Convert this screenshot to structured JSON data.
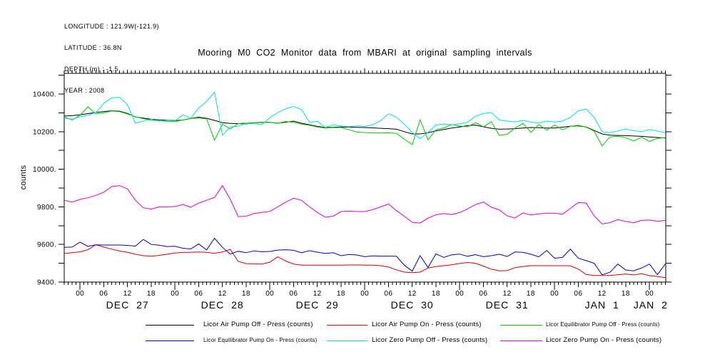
{
  "info_lines": [
    "LONGITUDE : 121.9W(-121.9)",
    "LATITUDE : 36.8N",
    "DEPTH (m) : -1.5",
    "YEAR : 2008"
  ],
  "title": "Mooring M0 CO2 Monitor data from MBARI at original sampling intervals",
  "y_axis": {
    "label": "counts",
    "major": [
      {
        "value": 9400,
        "label": "9400."
      },
      {
        "value": 9600,
        "label": "9600."
      },
      {
        "value": 9800,
        "label": "9800."
      },
      {
        "value": 10000,
        "label": "10000."
      },
      {
        "value": 10200,
        "label": "10200."
      },
      {
        "value": 10400,
        "label": "10400."
      }
    ],
    "minor_step": 100
  },
  "x_axis": {
    "hour_labels": [
      "00",
      "06",
      "12",
      "18"
    ],
    "day_labels": [
      {
        "text": "DEC 27",
        "t": 12
      },
      {
        "text": "DEC 28",
        "t": 36
      },
      {
        "text": "DEC 29",
        "t": 60
      },
      {
        "text": "DEC 30",
        "t": 84
      },
      {
        "text": "DEC 31",
        "t": 108
      },
      {
        "text": "JAN 1",
        "t": 132
      },
      {
        "text": "JAN 2",
        "t": 144.3
      }
    ]
  },
  "legend": {
    "rows": [
      [
        {
          "label": "Licor Air Pump Off - Press (counts)",
          "color": "#000000",
          "small": false
        },
        {
          "label": "Licor Air Pump On - Press (counts)",
          "color": "#dd0000",
          "small": false
        },
        {
          "label": "Licor Equilibrator Pump Off - Press (counts)",
          "color": "#00cc00",
          "small": true
        }
      ],
      [
        {
          "label": "Licor Equilibrator Pump On - Press (counts)",
          "color": "#0000cc",
          "small": true
        },
        {
          "label": "Licor Zero Pump Off - Press (counts)",
          "color": "#00e0e0",
          "small": false
        },
        {
          "label": "Licor Zero Pump On - Press (counts)",
          "color": "#dd00dd",
          "small": false
        }
      ]
    ]
  },
  "chart_data": {
    "type": "line",
    "title": "Mooring M0 CO2 Monitor data from MBARI at original sampling intervals",
    "xlabel": "",
    "ylabel": "counts",
    "ylim": [
      9400,
      10510
    ],
    "xlim_hours_from_dec27": [
      -4,
      148.2
    ],
    "x_start": -4,
    "x_step": 2,
    "x_unit": "hours relative to DEC 27 2007 00:00, axis labeled 00/06/12/18 per day DEC 27 - JAN 2",
    "grid": false,
    "legend_position": "bottom",
    "series": [
      {
        "name": "Licor Air Pump Off - Press (counts)",
        "color": "#000000",
        "values": [
          10283,
          10285,
          10290,
          10296,
          10302,
          10307,
          10311,
          10309,
          10297,
          10278,
          10272,
          10266,
          10263,
          10261,
          10259,
          10262,
          10270,
          10277,
          10271,
          10260,
          10248,
          10244,
          10243,
          10245,
          10247,
          10249,
          10250,
          10245,
          10250,
          10256,
          10245,
          10237,
          10228,
          10222,
          10223,
          10225,
          10224,
          10223,
          10222,
          10220,
          10218,
          10216,
          10213,
          10200,
          10188,
          10188,
          10194,
          10204,
          10212,
          10219,
          10225,
          10232,
          10235,
          10226,
          10218,
          10213,
          10214,
          10216,
          10219,
          10222,
          10221,
          10219,
          10219,
          10224,
          10229,
          10231,
          10225,
          10206,
          10188,
          10181,
          10180,
          10179,
          10177,
          10175,
          10172,
          10169,
          10166
        ]
      },
      {
        "name": "Licor Air Pump On - Press (counts)",
        "color": "#dd0000",
        "values": [
          9552,
          9556,
          9561,
          9572,
          9599,
          9586,
          9575,
          9565,
          9558,
          9548,
          9540,
          9537,
          9542,
          9548,
          9554,
          9558,
          9558,
          9560,
          9558,
          9553,
          9560,
          9574,
          9510,
          9498,
          9497,
          9496,
          9506,
          9534,
          9512,
          9496,
          9490,
          9490,
          9490,
          9490,
          9490,
          9490,
          9491,
          9491,
          9490,
          9490,
          9487,
          9480,
          9465,
          9453,
          9450,
          9453,
          9475,
          9483,
          9487,
          9492,
          9499,
          9504,
          9500,
          9485,
          9469,
          9460,
          9461,
          9477,
          9483,
          9487,
          9487,
          9487,
          9487,
          9487,
          9486,
          9469,
          9440,
          9435,
          9435,
          9435,
          9439,
          9443,
          9438,
          9445,
          9434,
          9430,
          9424
        ]
      },
      {
        "name": "Licor Equilibrator Pump Off - Press (counts)",
        "color": "#00cc00",
        "values": [
          10278,
          10262,
          10288,
          10332,
          10294,
          10300,
          10310,
          10306,
          10294,
          10279,
          10269,
          10261,
          10257,
          10255,
          10254,
          10262,
          10270,
          10273,
          10268,
          10155,
          10240,
          10215,
          10243,
          10240,
          10247,
          10248,
          10250,
          10244,
          10254,
          10250,
          10240,
          10234,
          10225,
          10219,
          10221,
          10222,
          10210,
          10198,
          10195,
          10194,
          10193,
          10194,
          10191,
          10160,
          10131,
          10263,
          10156,
          10210,
          10220,
          10238,
          10230,
          10226,
          10248,
          10226,
          10253,
          10180,
          10186,
          10219,
          10244,
          10196,
          10238,
          10208,
          10235,
          10210,
          10229,
          10234,
          10224,
          10203,
          10124,
          10172,
          10176,
          10168,
          10150,
          10170,
          10148,
          10164,
          10168
        ]
      },
      {
        "name": "Licor Equilibrator Pump On - Press (counts)",
        "color": "#0000cc",
        "values": [
          9585,
          9586,
          9612,
          9590,
          9598,
          9597,
          9597,
          9597,
          9595,
          9591,
          9627,
          9600,
          9596,
          9589,
          9590,
          9580,
          9576,
          9603,
          9571,
          9633,
          9585,
          9549,
          9564,
          9556,
          9566,
          9561,
          9563,
          9570,
          9572,
          9569,
          9556,
          9567,
          9559,
          9552,
          9556,
          9540,
          9547,
          9544,
          9535,
          9539,
          9538,
          9538,
          9537,
          9490,
          9458,
          9540,
          9478,
          9550,
          9531,
          9545,
          9549,
          9537,
          9546,
          9535,
          9540,
          9548,
          9536,
          9560,
          9558,
          9548,
          9534,
          9568,
          9527,
          9531,
          9575,
          9527,
          9514,
          9500,
          9439,
          9452,
          9496,
          9464,
          9460,
          9475,
          9496,
          9439,
          9496
        ]
      },
      {
        "name": "Licor Zero Pump Off - Press (counts)",
        "color": "#00e0e0",
        "values": [
          10272,
          10266,
          10280,
          10287,
          10302,
          10351,
          10380,
          10382,
          10342,
          10245,
          10256,
          10266,
          10255,
          10260,
          10257,
          10290,
          10272,
          10326,
          10362,
          10410,
          10181,
          10226,
          10228,
          10246,
          10242,
          10237,
          10275,
          10301,
          10322,
          10334,
          10318,
          10250,
          10255,
          10222,
          10236,
          10230,
          10226,
          10231,
          10228,
          10236,
          10258,
          10295,
          10277,
          10240,
          10196,
          10163,
          10196,
          10235,
          10241,
          10236,
          10242,
          10250,
          10282,
          10296,
          10302,
          10262,
          10256,
          10252,
          10260,
          10251,
          10246,
          10256,
          10251,
          10256,
          10276,
          10311,
          10320,
          10275,
          10200,
          10194,
          10204,
          10214,
          10205,
          10200,
          10211,
          10203,
          10194
        ]
      },
      {
        "name": "Licor Zero Pump On - Press (counts)",
        "color": "#dd00dd",
        "values": [
          9835,
          9825,
          9840,
          9848,
          9861,
          9878,
          9908,
          9913,
          9895,
          9835,
          9795,
          9788,
          9800,
          9800,
          9802,
          9812,
          9798,
          9820,
          9835,
          9850,
          9913,
          9840,
          9748,
          9750,
          9765,
          9770,
          9776,
          9800,
          9825,
          9846,
          9835,
          9800,
          9770,
          9745,
          9750,
          9775,
          9778,
          9775,
          9775,
          9785,
          9800,
          9815,
          9780,
          9750,
          9718,
          9714,
          9740,
          9758,
          9765,
          9759,
          9770,
          9789,
          9812,
          9826,
          9798,
          9784,
          9752,
          9741,
          9768,
          9757,
          9763,
          9766,
          9766,
          9761,
          9792,
          9823,
          9820,
          9752,
          9709,
          9716,
          9733,
          9722,
          9716,
          9728,
          9730,
          9723,
          9728
        ]
      }
    ]
  }
}
